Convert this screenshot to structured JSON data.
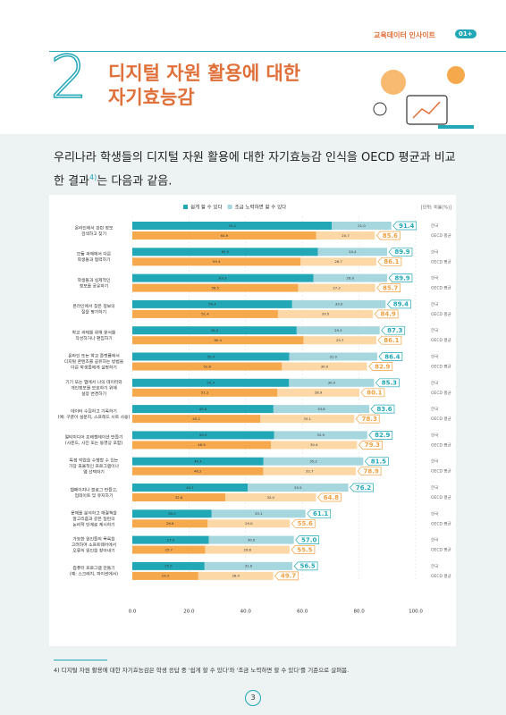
{
  "header": {
    "brand": "교육데이터 인사이트",
    "badge": "01+"
  },
  "section": {
    "number": "2",
    "title_lines": [
      "디지털 자원 활용에 대한",
      "자기효능감"
    ]
  },
  "intro": {
    "text": "우리나라 학생들의 디지털 자원 활용에 대한 자기효능감 인식을 OECD 평균과 비교한 결과",
    "note": "4)",
    "text_end": "는 다음과 같음."
  },
  "chart_data": {
    "type": "stacked-bar-paired",
    "unit": "[단위: 비율(%)]",
    "categories": [
      [
        "온라인에서 관련 정보",
        "검색하고 찾기"
      ],
      [
        "모둠 과제에서 다른",
        "학생들과 협력하기"
      ],
      [
        "학생들과 실제적인",
        "정보를 공유하기"
      ],
      [
        "온라인에서 찾은 정보의",
        "질을 평가하기"
      ],
      [
        "학교 과제를 위해 문서를",
        "작성하거나 편집하기"
      ],
      [
        "온라인 또는 학교 플랫폼에서",
        "디지털 콘텐츠를 공유하는 방법을",
        "다른 학생들에게 설명하기"
      ],
      [
        "기기 또는 앱에서 나의 데이터와",
        "개인정보를 보호하기 위해",
        "설정 변경하기"
      ],
      [
        "데이터 수집하고 기록하기",
        "(예: 구글이 설문지, 스프레드 시트 사용)"
      ],
      [
        "멀티미디어 프레젠테이션 만들기",
        "(사운드, 사진 또는 동영상 포함)"
      ],
      [
        "특정 작업을 수행할 수 있는",
        "가장 효율적인 프로그램이나",
        "앱 선택하기"
      ],
      [
        "웹페이지나 블로그 만들고,",
        "업데이트 및 유지하기"
      ],
      [
        "문제를 분석하고 해결책을",
        "알고리즘과 같은 일련의",
        "논리적 단계로 제시하기"
      ],
      [
        "가능한 원인들의 목록을",
        "고려하여 소프트웨어에서",
        "오류의 원인을 찾아내기"
      ],
      [
        "컴퓨터 프로그램 만들기",
        "(예: 스크래치, 파이썬에서)"
      ]
    ],
    "groups": [
      "한국",
      "OECD 평균"
    ],
    "series": [
      {
        "name": "쉽게 할 수 있다",
        "colors": [
          "#22a7b7",
          "#f6a84c"
        ],
        "values": [
          [
            70.4,
            64.9
          ],
          [
            65.5,
            59.4
          ],
          [
            63.9,
            58.5
          ],
          [
            56.4,
            51.4
          ],
          [
            58.0,
            60.4
          ],
          [
            55.4,
            52.8
          ],
          [
            55.3,
            51.2
          ],
          [
            49.8,
            45.2
          ],
          [
            50.0,
            48.9
          ],
          [
            46.3,
            46.2
          ],
          [
            40.7,
            32.8
          ],
          [
            28.0,
            26.6
          ],
          [
            27.0,
            25.7
          ],
          [
            25.5,
            23.3
          ]
        ],
        "value_labels": [
          [
            "70.4",
            "64.9"
          ],
          [
            "65.5",
            "59.4"
          ],
          [
            "63.9",
            "58.5"
          ],
          [
            "56.4",
            "51.4"
          ],
          [
            "58.0",
            "60.4"
          ],
          [
            "55.4",
            "52.8"
          ],
          [
            "55.3",
            "51.2"
          ],
          [
            "49.8",
            "45.2"
          ],
          [
            "50.0",
            "48.9"
          ],
          [
            "46.3",
            "46.2"
          ],
          [
            "40.7",
            "32.8"
          ],
          [
            "28.0",
            "26.6"
          ],
          [
            "27.0",
            "25.7"
          ],
          [
            "25.5",
            "23.3"
          ]
        ]
      },
      {
        "name": "조금 노력하면 할 수 있다",
        "colors": [
          "#a6d7df",
          "#fcd8a6"
        ],
        "values": [
          [
            21.0,
            20.7
          ],
          [
            24.4,
            26.7
          ],
          [
            26.0,
            27.2
          ],
          [
            33.0,
            33.5
          ],
          [
            29.3,
            25.7
          ],
          [
            31.0,
            30.0
          ],
          [
            30.0,
            28.9
          ],
          [
            33.8,
            33.1
          ],
          [
            32.9,
            30.4
          ],
          [
            35.2,
            32.7
          ],
          [
            35.5,
            32.0
          ],
          [
            33.1,
            29.0
          ],
          [
            30.0,
            29.8
          ],
          [
            31.0,
            26.4
          ]
        ],
        "value_labels": [
          [
            "21.0",
            "20.7"
          ],
          [
            "24.4",
            "26.7"
          ],
          [
            "26.0",
            "27.2"
          ],
          [
            "33.0",
            "33.5"
          ],
          [
            "29.3",
            "25.7"
          ],
          [
            "31.0",
            "30.0"
          ],
          [
            "30.0",
            "28.9"
          ],
          [
            "33.8",
            "33.1"
          ],
          [
            "32.9",
            "30.4"
          ],
          [
            "35.2",
            "32.7"
          ],
          [
            "35.5",
            "32.0"
          ],
          [
            "33.1",
            "29.0"
          ],
          [
            "30.0",
            "29.8"
          ],
          [
            "31.0",
            "26.4"
          ]
        ]
      }
    ],
    "totals": [
      [
        91.4,
        85.6
      ],
      [
        89.9,
        86.1
      ],
      [
        89.9,
        85.7
      ],
      [
        89.4,
        84.9
      ],
      [
        87.3,
        86.1
      ],
      [
        86.4,
        82.9
      ],
      [
        85.3,
        80.1
      ],
      [
        83.6,
        78.3
      ],
      [
        82.9,
        79.3
      ],
      [
        81.5,
        78.9
      ],
      [
        76.2,
        64.8
      ],
      [
        61.1,
        55.6
      ],
      [
        57.0,
        55.5
      ],
      [
        56.5,
        49.7
      ]
    ],
    "total_labels": [
      [
        "91.4",
        "85.6"
      ],
      [
        "89.9",
        "86.1"
      ],
      [
        "89.9",
        "85.7"
      ],
      [
        "89.4",
        "84.9"
      ],
      [
        "87.3",
        "86.1"
      ],
      [
        "86.4",
        "82.9"
      ],
      [
        "85.3",
        "80.1"
      ],
      [
        "83.6",
        "78.3"
      ],
      [
        "82.9",
        "79.3"
      ],
      [
        "81.5",
        "78.9"
      ],
      [
        "76.2",
        "64.8"
      ],
      [
        "61.1",
        "55.6"
      ],
      [
        "57.0",
        "55.5"
      ],
      [
        "56.5",
        "49.7"
      ]
    ],
    "total_colors": [
      "#22a7b7",
      "#f0a040"
    ],
    "xlim": [
      0,
      100
    ],
    "xticks": [
      {
        "value": 0,
        "label": "0.0"
      },
      {
        "value": 20,
        "label": "20.0"
      },
      {
        "value": 40,
        "label": "40.0"
      },
      {
        "value": 60,
        "label": "60.0"
      },
      {
        "value": 80,
        "label": "80.0"
      },
      {
        "value": 100,
        "label": "100.0"
      }
    ],
    "grid": true
  },
  "footnote": "4) 디지털 자원 활용에 대한 자기효능감은 학생 응답 중 '쉽게 할 수 있다'와 '조금 노력하면 할 수 있다'를 기준으로 살펴봄.",
  "page_number": "3"
}
